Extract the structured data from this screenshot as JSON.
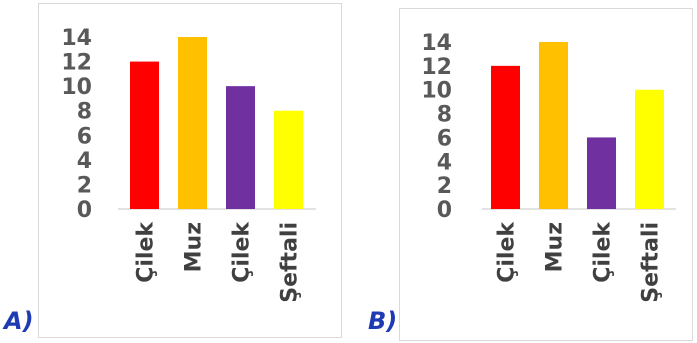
{
  "chart_data": [
    {
      "type": "bar",
      "panel_label": "A)",
      "categories": [
        "Çilek",
        "Muz",
        "Çilek",
        "Şeftali"
      ],
      "values": [
        12,
        14,
        10,
        8
      ],
      "colors": [
        "#ff0000",
        "#ffc000",
        "#7030a0",
        "#ffff00"
      ],
      "ylim": [
        0,
        14
      ],
      "yticks": [
        "0",
        "2",
        "4",
        "6",
        "8",
        "10",
        "12",
        "14"
      ],
      "grid": false,
      "legend": "none"
    },
    {
      "type": "bar",
      "panel_label": "B)",
      "categories": [
        "Çilek",
        "Muz",
        "Çilek",
        "Şeftali"
      ],
      "values": [
        12,
        14,
        6,
        10
      ],
      "colors": [
        "#ff0000",
        "#ffc000",
        "#7030a0",
        "#ffff00"
      ],
      "ylim": [
        0,
        14
      ],
      "yticks": [
        "0",
        "2",
        "4",
        "6",
        "8",
        "10",
        "12",
        "14"
      ],
      "grid": false,
      "legend": "none"
    }
  ]
}
